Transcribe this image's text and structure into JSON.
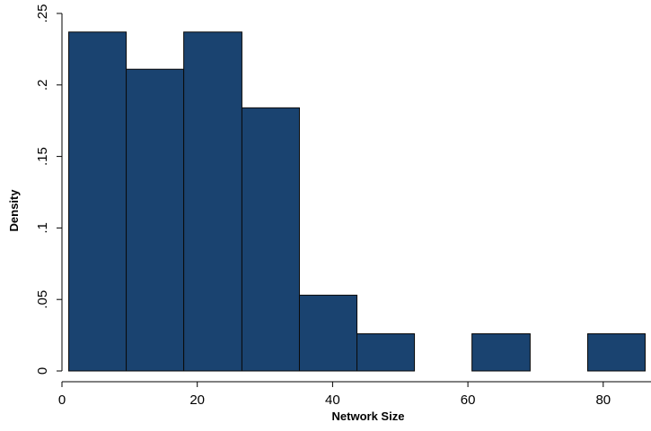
{
  "chart_data": {
    "type": "bar",
    "subtype": "histogram",
    "title": "",
    "xlabel": "Network Size",
    "ylabel": "Density",
    "xlim": [
      0,
      86
    ],
    "ylim": [
      0,
      0.25
    ],
    "x_ticks": [
      0,
      20,
      40,
      60,
      80
    ],
    "x_tick_labels": [
      "0",
      "20",
      "40",
      "60",
      "80"
    ],
    "y_ticks": [
      0,
      0.05,
      0.1,
      0.15,
      0.2,
      0.25
    ],
    "y_tick_labels": [
      "0",
      ".05",
      ".1",
      ".15",
      ".2",
      ".25"
    ],
    "grid": false,
    "bins": [
      {
        "x0": 1,
        "x1": 9.5,
        "value": 0.237
      },
      {
        "x0": 9.5,
        "x1": 18,
        "value": 0.211
      },
      {
        "x0": 18,
        "x1": 26.6,
        "value": 0.237
      },
      {
        "x0": 26.6,
        "x1": 35.1,
        "value": 0.184
      },
      {
        "x0": 35.1,
        "x1": 43.6,
        "value": 0.053
      },
      {
        "x0": 43.6,
        "x1": 52.1,
        "value": 0.026
      },
      {
        "x0": 52.1,
        "x1": 60.6,
        "value": 0
      },
      {
        "x0": 60.6,
        "x1": 69.2,
        "value": 0.026
      },
      {
        "x0": 69.2,
        "x1": 77.7,
        "value": 0
      },
      {
        "x0": 77.7,
        "x1": 86.2,
        "value": 0.026
      }
    ],
    "colors": {
      "bar_fill": "#1a4370",
      "bar_stroke": "#0a0a0a",
      "axis": "#000000"
    }
  }
}
